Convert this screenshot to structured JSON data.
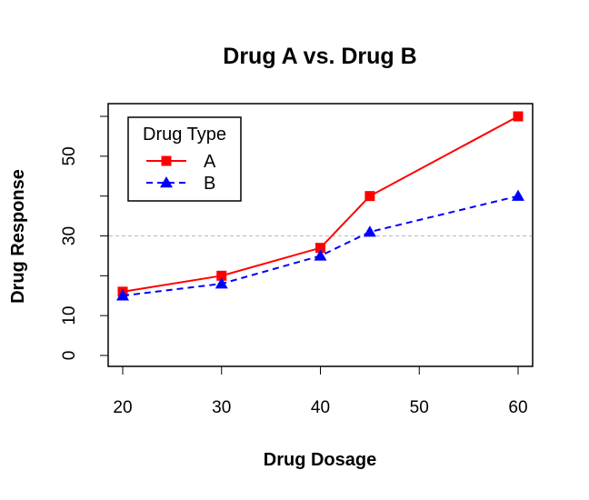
{
  "chart_data": {
    "type": "line",
    "title": "Drug A vs. Drug B",
    "xlabel": "Drug Dosage",
    "ylabel": "Drug Response",
    "x": [
      20,
      30,
      40,
      45,
      60
    ],
    "xlim": [
      20,
      60
    ],
    "ylim": [
      0,
      60
    ],
    "x_ticks": [
      20,
      30,
      40,
      50,
      60
    ],
    "y_ticks": [
      0,
      10,
      30,
      50
    ],
    "reference_line": {
      "y": 30,
      "color": "#bbbbbb",
      "style": "dashed"
    },
    "series": [
      {
        "name": "A",
        "values": [
          16,
          20,
          27,
          40,
          60
        ],
        "color": "#ff0000",
        "line": "solid",
        "marker": "square"
      },
      {
        "name": "B",
        "values": [
          15,
          18,
          25,
          31,
          40
        ],
        "color": "#0000ff",
        "line": "dashed",
        "marker": "triangle"
      }
    ],
    "legend": {
      "title": "Drug Type",
      "position": "top-left"
    },
    "grid": false
  }
}
